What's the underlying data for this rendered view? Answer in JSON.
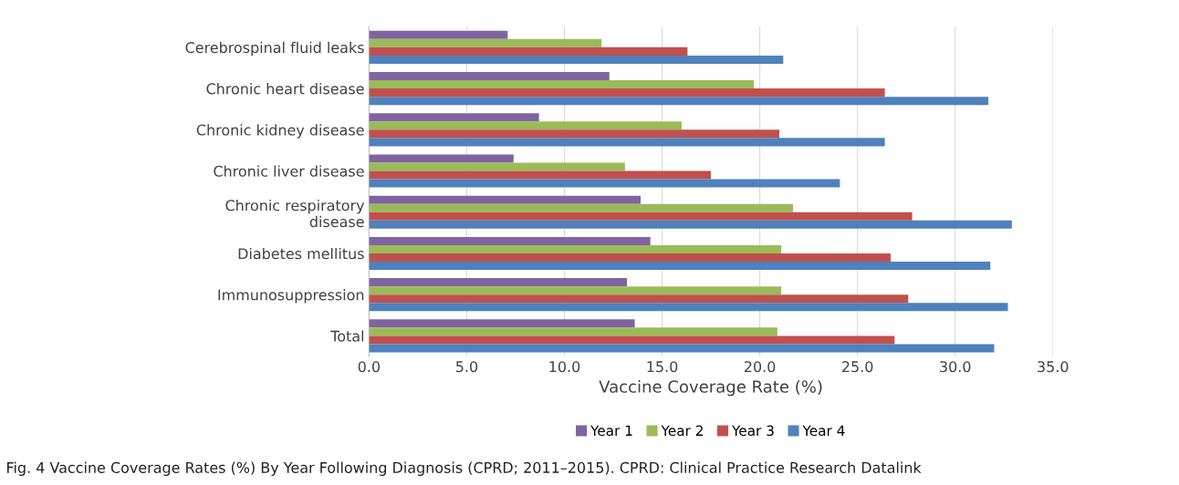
{
  "chart_data": {
    "type": "bar",
    "orientation": "horizontal",
    "categories": [
      "Cerebrospinal fluid leaks",
      "Chronic heart disease",
      "Chronic kidney disease",
      "Chronic liver disease",
      "Chronic respiratory\ndisease",
      "Diabetes mellitus",
      "Immunosuppression",
      "Total"
    ],
    "series": [
      {
        "name": "Year 1",
        "color": "#8064a2",
        "values": [
          7.1,
          12.3,
          8.7,
          7.4,
          13.9,
          14.4,
          13.2,
          13.6
        ]
      },
      {
        "name": "Year 2",
        "color": "#9bbb59",
        "values": [
          11.9,
          19.7,
          16.0,
          13.1,
          21.7,
          21.1,
          21.1,
          20.9
        ]
      },
      {
        "name": "Year 3",
        "color": "#c0504d",
        "values": [
          16.3,
          26.4,
          21.0,
          17.5,
          27.8,
          26.7,
          27.6,
          26.9
        ]
      },
      {
        "name": "Year 4",
        "color": "#4f81bd",
        "values": [
          21.2,
          31.7,
          26.4,
          24.1,
          32.9,
          31.8,
          32.7,
          32.0
        ]
      }
    ],
    "xlabel": "Vaccine Coverage Rate (%)",
    "xlim": [
      0,
      35
    ],
    "xticks": [
      {
        "value": 0,
        "label": "0.0"
      },
      {
        "value": 5,
        "label": "5.0"
      },
      {
        "value": 10,
        "label": "10.0"
      },
      {
        "value": 15,
        "label": "15.0"
      },
      {
        "value": 20,
        "label": "20.0"
      },
      {
        "value": 25,
        "label": "25.0"
      },
      {
        "value": 30,
        "label": "30.0"
      },
      {
        "value": 35,
        "label": "35.0"
      }
    ],
    "grid": "x",
    "legend": "bottom",
    "annotations": [
      "Fig. 4 Vaccine Coverage Rates (%) By Year Following Diagnosis (CPRD; 2011–2015). CPRD: Clinical Practice Research Datalink"
    ]
  }
}
